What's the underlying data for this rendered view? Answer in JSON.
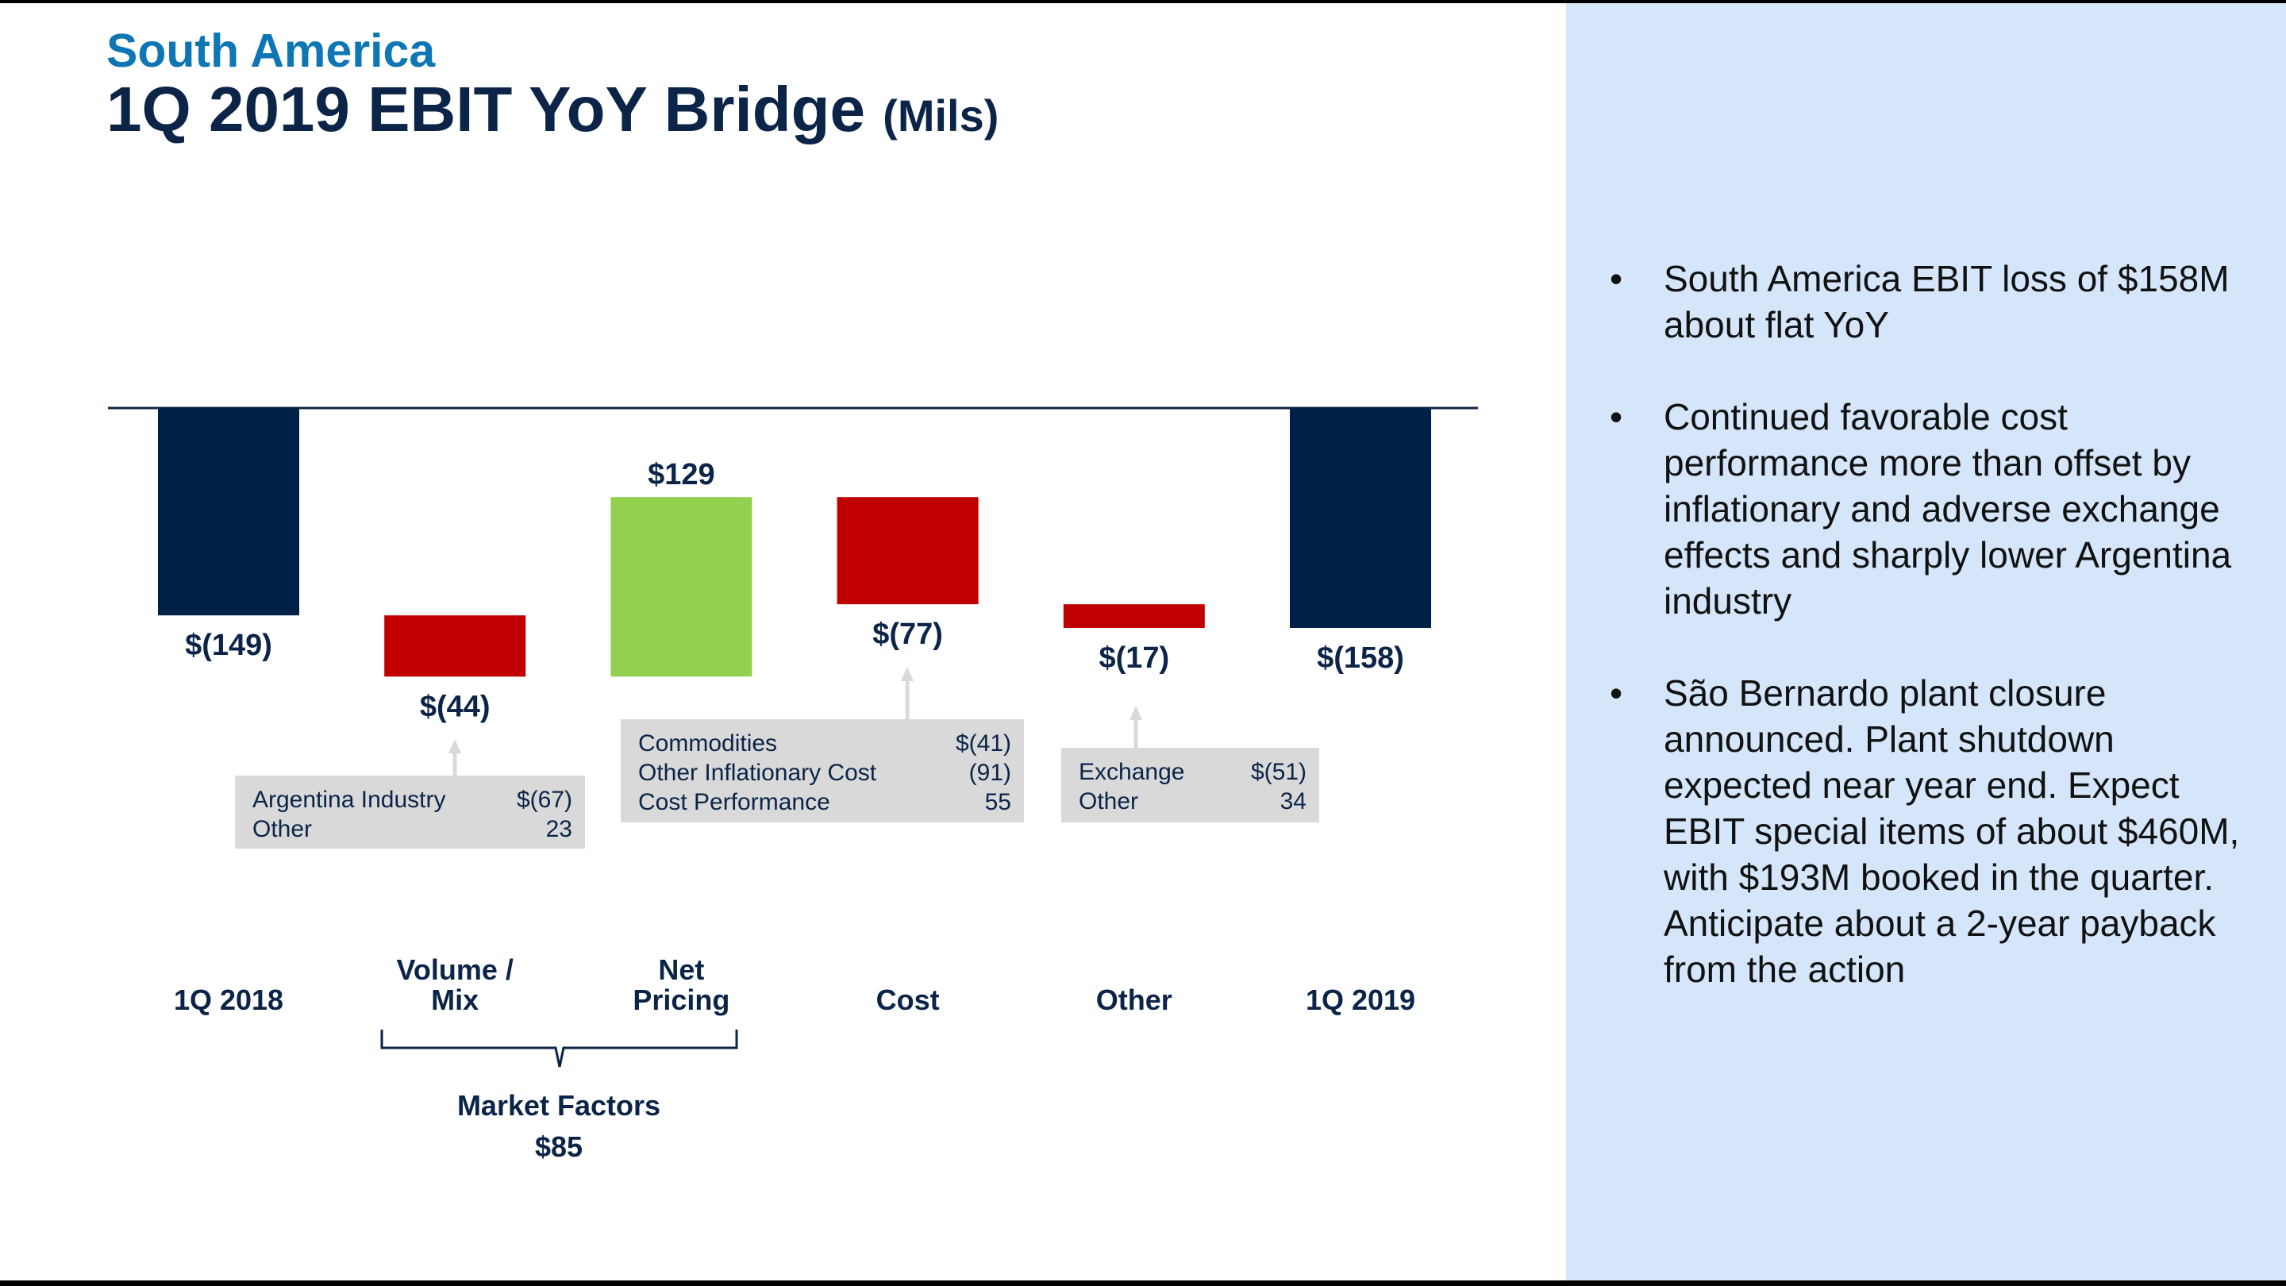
{
  "header": {
    "region": "South America",
    "title": "1Q 2019 EBIT YoY Bridge",
    "unit": "(Mils)"
  },
  "chart_data": {
    "type": "waterfall",
    "categories": [
      "1Q 2018",
      "Volume / Mix",
      "Net Pricing",
      "Cost",
      "Other",
      "1Q 2019"
    ],
    "values": [
      -149,
      -44,
      129,
      -77,
      -17,
      -158
    ],
    "kinds": [
      "total",
      "delta",
      "delta",
      "delta",
      "delta",
      "total"
    ],
    "data_labels": [
      "$(149)",
      "$(44)",
      "$129",
      "$(77)",
      "$(17)",
      "$(158)"
    ],
    "colors": {
      "total": "#002147",
      "negative": "#c00000",
      "positive": "#92d050"
    },
    "group": {
      "label": "Market Factors",
      "value": "$85",
      "spans": [
        "Volume / Mix",
        "Net Pricing"
      ]
    },
    "callouts": [
      {
        "category": "Volume / Mix",
        "rows": [
          {
            "label": "Argentina Industry",
            "value": "$(67)"
          },
          {
            "label": "Other",
            "value": "23"
          }
        ]
      },
      {
        "category": "Cost",
        "rows": [
          {
            "label": "Commodities",
            "value": "$(41)"
          },
          {
            "label": "Other Inflationary Cost",
            "value": "(91)"
          },
          {
            "label": "Cost Performance",
            "value": "55"
          }
        ]
      },
      {
        "category": "Other",
        "rows": [
          {
            "label": "Exchange",
            "value": "$(51)"
          },
          {
            "label": "Other",
            "value": "34"
          }
        ]
      }
    ]
  },
  "category_labels": [
    "1Q 2018",
    "Volume /\nMix",
    "Net\nPricing",
    "Cost",
    "Other",
    "1Q 2019"
  ],
  "sidebar": {
    "bullets": [
      "South America EBIT loss of $158M about flat YoY",
      "Continued favorable cost performance more than offset by inflationary and adverse exchange effects and sharply lower Argentina industry",
      "São Bernardo plant closure announced.  Plant shutdown expected near year end.  Expect EBIT special items of about $460M, with $193M booked in the quarter.  Anticipate about a 2-year payback from the action"
    ],
    "bullet_symbol": "•"
  }
}
